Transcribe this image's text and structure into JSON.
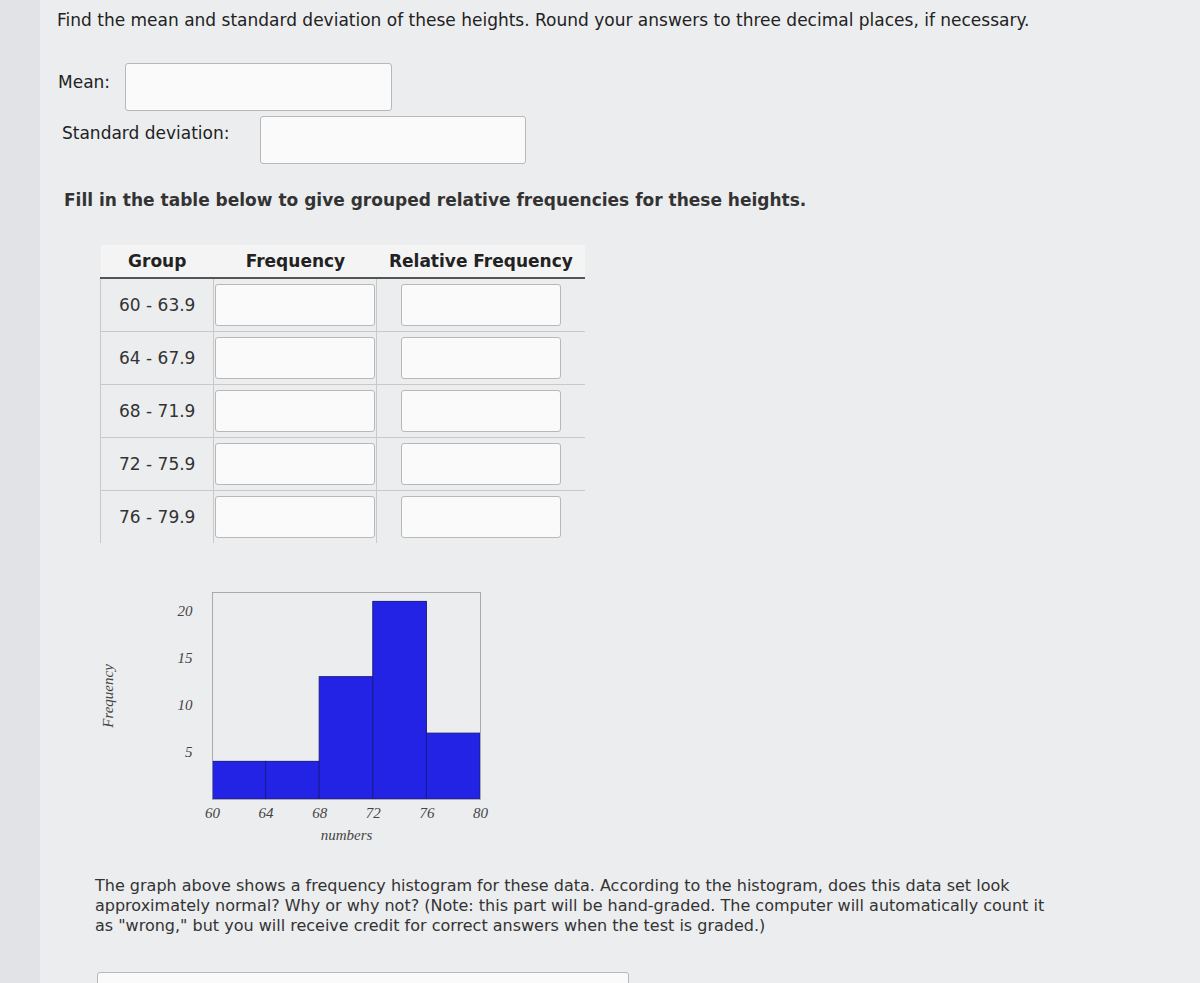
{
  "question": "Find the mean and standard deviation of these heights. Round your answers to three decimal places, if necessary.",
  "fields": [
    "Mean:",
    "Standard deviation:"
  ],
  "table_prompt": "Fill in the table below to give grouped relative frequencies for these heights.",
  "table": {
    "header": [
      "Group",
      "Frequency",
      "Relative Frequency"
    ],
    "rows": [
      [
        "60 - 63.9"
      ],
      [
        "64 - 67.9"
      ],
      [
        "68 - 71.9"
      ],
      [
        "72 - 75.9"
      ],
      [
        "76 - 79.9"
      ]
    ]
  },
  "chart_data": {
    "type": "histogram",
    "bins": [
      60,
      64,
      68,
      72,
      76,
      80
    ],
    "values": [
      4,
      4,
      13,
      21,
      7
    ],
    "color": "#2323e6",
    "x_label": "numbers",
    "y_label": "Frequency",
    "xlim": [
      60,
      80
    ],
    "xticks": [
      60,
      64,
      68,
      72,
      76,
      80
    ],
    "ylim": [
      0,
      22
    ],
    "yticks": [
      5,
      10,
      15,
      20
    ]
  },
  "caption": "The graph above shows a frequency histogram for these data. According to the histogram, does this data set look approximately normal? Why or why not? (Note: this part will be hand-graded. The computer will automatically count it as \"wrong,\" but you will receive credit for correct answers when the test is graded.)"
}
